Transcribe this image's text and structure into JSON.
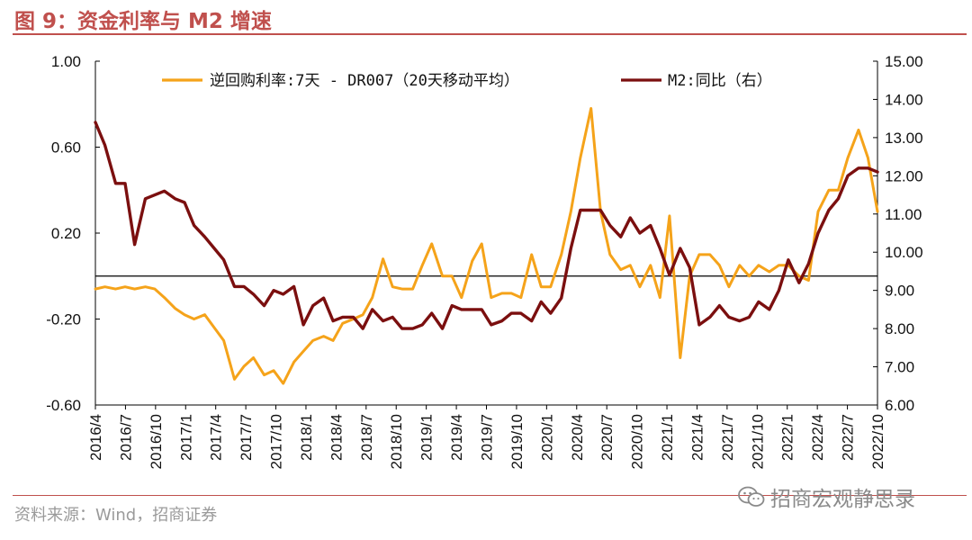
{
  "figure": {
    "title": "图 9：资金利率与 M2 增速",
    "source": "资料来源：Wind，招商证券",
    "watermark": "招商宏观静思录",
    "watermark_icon": "wechat-icon"
  },
  "chart_data": {
    "type": "line",
    "xlabel": "",
    "ylabel": "",
    "x_tick_labels": [
      "2016/4",
      "2016/7",
      "2016/10",
      "2017/1",
      "2017/4",
      "2017/7",
      "2017/10",
      "2018/1",
      "2018/4",
      "2018/7",
      "2018/10",
      "2019/1",
      "2019/4",
      "2019/7",
      "2019/10",
      "2020/1",
      "2020/4",
      "2020/7",
      "2020/10",
      "2021/1",
      "2021/4",
      "2021/7",
      "2021/10",
      "2022/1",
      "2022/4",
      "2022/7",
      "2022/10"
    ],
    "y_left": {
      "range": [
        -0.6,
        1.0
      ],
      "ticks": [
        "1.00",
        "0.60",
        "0.20",
        "-0.20",
        "-0.60"
      ]
    },
    "y_right": {
      "range": [
        6.0,
        15.0
      ],
      "ticks": [
        "15.00",
        "14.00",
        "13.00",
        "12.00",
        "11.00",
        "10.00",
        "9.00",
        "8.00",
        "7.00",
        "6.00"
      ]
    },
    "reference_line_left": 0.0,
    "grid": false,
    "legend_position": "top",
    "series": [
      {
        "name": "逆回购利率:7天 - DR007（20天移动平均）",
        "axis": "left",
        "color": "#f5a31a",
        "points": [
          [
            2016.25,
            -0.06
          ],
          [
            2016.33,
            -0.05
          ],
          [
            2016.42,
            -0.06
          ],
          [
            2016.5,
            -0.05
          ],
          [
            2016.58,
            -0.06
          ],
          [
            2016.67,
            -0.05
          ],
          [
            2016.75,
            -0.06
          ],
          [
            2016.83,
            -0.1
          ],
          [
            2016.92,
            -0.15
          ],
          [
            2017.0,
            -0.18
          ],
          [
            2017.08,
            -0.2
          ],
          [
            2017.17,
            -0.18
          ],
          [
            2017.25,
            -0.24
          ],
          [
            2017.33,
            -0.3
          ],
          [
            2017.42,
            -0.48
          ],
          [
            2017.5,
            -0.42
          ],
          [
            2017.58,
            -0.38
          ],
          [
            2017.67,
            -0.46
          ],
          [
            2017.75,
            -0.44
          ],
          [
            2017.83,
            -0.5
          ],
          [
            2017.92,
            -0.4
          ],
          [
            2018.0,
            -0.35
          ],
          [
            2018.08,
            -0.3
          ],
          [
            2018.17,
            -0.28
          ],
          [
            2018.25,
            -0.3
          ],
          [
            2018.33,
            -0.22
          ],
          [
            2018.42,
            -0.2
          ],
          [
            2018.5,
            -0.18
          ],
          [
            2018.58,
            -0.1
          ],
          [
            2018.67,
            0.08
          ],
          [
            2018.75,
            -0.05
          ],
          [
            2018.83,
            -0.06
          ],
          [
            2018.92,
            -0.06
          ],
          [
            2019.0,
            0.05
          ],
          [
            2019.08,
            0.15
          ],
          [
            2019.17,
            0.0
          ],
          [
            2019.25,
            0.0
          ],
          [
            2019.33,
            -0.1
          ],
          [
            2019.42,
            0.07
          ],
          [
            2019.5,
            0.15
          ],
          [
            2019.58,
            -0.1
          ],
          [
            2019.67,
            -0.08
          ],
          [
            2019.75,
            -0.08
          ],
          [
            2019.83,
            -0.1
          ],
          [
            2019.92,
            0.1
          ],
          [
            2020.0,
            -0.05
          ],
          [
            2020.08,
            -0.05
          ],
          [
            2020.17,
            0.1
          ],
          [
            2020.25,
            0.3
          ],
          [
            2020.33,
            0.55
          ],
          [
            2020.42,
            0.78
          ],
          [
            2020.5,
            0.3
          ],
          [
            2020.58,
            0.1
          ],
          [
            2020.67,
            0.03
          ],
          [
            2020.75,
            0.05
          ],
          [
            2020.83,
            -0.05
          ],
          [
            2020.92,
            0.05
          ],
          [
            2021.0,
            -0.1
          ],
          [
            2021.08,
            0.28
          ],
          [
            2021.17,
            -0.38
          ],
          [
            2021.25,
            0.0
          ],
          [
            2021.33,
            0.1
          ],
          [
            2021.42,
            0.1
          ],
          [
            2021.5,
            0.05
          ],
          [
            2021.58,
            -0.05
          ],
          [
            2021.67,
            0.05
          ],
          [
            2021.75,
            0.0
          ],
          [
            2021.83,
            0.05
          ],
          [
            2021.92,
            0.02
          ],
          [
            2022.0,
            0.05
          ],
          [
            2022.08,
            0.05
          ],
          [
            2022.17,
            0.0
          ],
          [
            2022.25,
            -0.02
          ],
          [
            2022.33,
            0.3
          ],
          [
            2022.42,
            0.4
          ],
          [
            2022.5,
            0.4
          ],
          [
            2022.58,
            0.55
          ],
          [
            2022.67,
            0.68
          ],
          [
            2022.75,
            0.55
          ],
          [
            2022.83,
            0.3
          ]
        ]
      },
      {
        "name": "M2:同比（右）",
        "axis": "right",
        "color": "#7b0f0f",
        "points": [
          [
            2016.25,
            13.4
          ],
          [
            2016.33,
            12.8
          ],
          [
            2016.42,
            11.8
          ],
          [
            2016.5,
            11.8
          ],
          [
            2016.58,
            10.2
          ],
          [
            2016.67,
            11.4
          ],
          [
            2016.75,
            11.5
          ],
          [
            2016.83,
            11.6
          ],
          [
            2016.92,
            11.4
          ],
          [
            2017.0,
            11.3
          ],
          [
            2017.08,
            10.7
          ],
          [
            2017.17,
            10.4
          ],
          [
            2017.25,
            10.1
          ],
          [
            2017.33,
            9.8
          ],
          [
            2017.42,
            9.1
          ],
          [
            2017.5,
            9.1
          ],
          [
            2017.58,
            8.9
          ],
          [
            2017.67,
            8.6
          ],
          [
            2017.75,
            9.0
          ],
          [
            2017.83,
            8.9
          ],
          [
            2017.92,
            9.1
          ],
          [
            2018.0,
            8.1
          ],
          [
            2018.08,
            8.6
          ],
          [
            2018.17,
            8.8
          ],
          [
            2018.25,
            8.2
          ],
          [
            2018.33,
            8.3
          ],
          [
            2018.42,
            8.3
          ],
          [
            2018.5,
            8.0
          ],
          [
            2018.58,
            8.5
          ],
          [
            2018.67,
            8.2
          ],
          [
            2018.75,
            8.3
          ],
          [
            2018.83,
            8.0
          ],
          [
            2018.92,
            8.0
          ],
          [
            2019.0,
            8.1
          ],
          [
            2019.08,
            8.4
          ],
          [
            2019.17,
            8.0
          ],
          [
            2019.25,
            8.6
          ],
          [
            2019.33,
            8.5
          ],
          [
            2019.42,
            8.5
          ],
          [
            2019.5,
            8.5
          ],
          [
            2019.58,
            8.1
          ],
          [
            2019.67,
            8.2
          ],
          [
            2019.75,
            8.4
          ],
          [
            2019.83,
            8.4
          ],
          [
            2019.92,
            8.2
          ],
          [
            2020.0,
            8.7
          ],
          [
            2020.08,
            8.4
          ],
          [
            2020.17,
            8.8
          ],
          [
            2020.25,
            10.1
          ],
          [
            2020.33,
            11.1
          ],
          [
            2020.42,
            11.1
          ],
          [
            2020.5,
            11.1
          ],
          [
            2020.58,
            10.7
          ],
          [
            2020.67,
            10.4
          ],
          [
            2020.75,
            10.9
          ],
          [
            2020.83,
            10.5
          ],
          [
            2020.92,
            10.7
          ],
          [
            2021.0,
            10.1
          ],
          [
            2021.08,
            9.4
          ],
          [
            2021.17,
            10.1
          ],
          [
            2021.25,
            9.6
          ],
          [
            2021.33,
            8.1
          ],
          [
            2021.42,
            8.3
          ],
          [
            2021.5,
            8.6
          ],
          [
            2021.58,
            8.3
          ],
          [
            2021.67,
            8.2
          ],
          [
            2021.75,
            8.3
          ],
          [
            2021.83,
            8.7
          ],
          [
            2021.92,
            8.5
          ],
          [
            2022.0,
            9.0
          ],
          [
            2022.08,
            9.8
          ],
          [
            2022.17,
            9.2
          ],
          [
            2022.25,
            9.7
          ],
          [
            2022.33,
            10.5
          ],
          [
            2022.42,
            11.1
          ],
          [
            2022.5,
            11.4
          ],
          [
            2022.58,
            12.0
          ],
          [
            2022.67,
            12.2
          ],
          [
            2022.75,
            12.2
          ],
          [
            2022.83,
            12.1
          ]
        ]
      }
    ]
  }
}
